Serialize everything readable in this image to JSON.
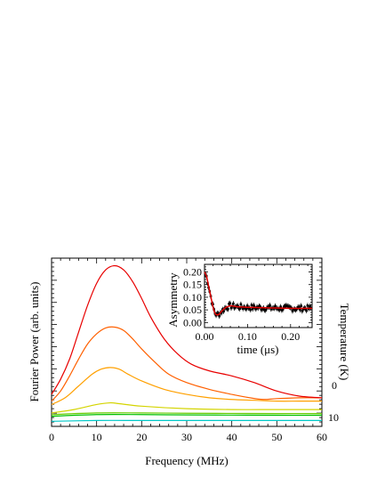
{
  "chart_data": [
    {
      "type": "line",
      "xlabel": "Frequency (MHz)",
      "ylabel": "Fourier Power (arb. units)",
      "y2label": "Temperature (K)",
      "xlim": [
        0,
        60
      ],
      "xticks": [
        "0",
        "10",
        "20",
        "30",
        "40",
        "50",
        "60"
      ],
      "colorbar_ticks": [
        "0",
        "10"
      ],
      "series": [
        {
          "color": "#00c8c8",
          "x": [
            0,
            10,
            20,
            30,
            40,
            50,
            60
          ],
          "values": [
            0.03,
            0.035,
            0.035,
            0.035,
            0.035,
            0.035,
            0.035
          ]
        },
        {
          "color": "#00c000",
          "x": [
            0,
            10,
            20,
            30,
            40,
            50,
            60
          ],
          "values": [
            0.06,
            0.07,
            0.07,
            0.068,
            0.067,
            0.066,
            0.066
          ]
        },
        {
          "color": "#66cc00",
          "x": [
            0,
            10,
            20,
            30,
            40,
            50,
            60
          ],
          "values": [
            0.07,
            0.08,
            0.08,
            0.078,
            0.077,
            0.076,
            0.076
          ]
        },
        {
          "color": "#d4d400",
          "x": [
            0,
            5,
            10,
            13,
            15,
            20,
            30,
            40,
            50,
            60
          ],
          "values": [
            0.08,
            0.1,
            0.13,
            0.14,
            0.135,
            0.12,
            0.105,
            0.1,
            0.1,
            0.1
          ]
        },
        {
          "color": "#ffa000",
          "x": [
            0,
            3,
            6,
            9,
            11,
            13,
            15,
            17,
            20,
            25,
            30,
            35,
            40,
            45,
            50,
            55,
            60
          ],
          "values": [
            0.13,
            0.17,
            0.24,
            0.31,
            0.34,
            0.35,
            0.34,
            0.31,
            0.27,
            0.22,
            0.19,
            0.17,
            0.16,
            0.155,
            0.15,
            0.15,
            0.15
          ]
        },
        {
          "color": "#ff6000",
          "x": [
            0,
            2,
            4,
            6,
            8,
            10,
            12,
            14,
            16,
            18,
            20,
            23,
            26,
            30,
            35,
            40,
            44,
            47,
            50,
            55,
            60
          ],
          "values": [
            0.15,
            0.21,
            0.3,
            0.4,
            0.49,
            0.55,
            0.585,
            0.59,
            0.57,
            0.52,
            0.46,
            0.38,
            0.31,
            0.26,
            0.22,
            0.19,
            0.17,
            0.16,
            0.165,
            0.17,
            0.17
          ]
        },
        {
          "color": "#e80000",
          "x": [
            0,
            2,
            4,
            6,
            8,
            10,
            12,
            14,
            16,
            18,
            20,
            22,
            25,
            28,
            31,
            35,
            40,
            45,
            50,
            55,
            60
          ],
          "values": [
            0.19,
            0.28,
            0.4,
            0.56,
            0.72,
            0.85,
            0.93,
            0.955,
            0.93,
            0.86,
            0.76,
            0.65,
            0.52,
            0.43,
            0.37,
            0.33,
            0.3,
            0.26,
            0.21,
            0.18,
            0.17
          ]
        }
      ]
    },
    {
      "type": "scatter",
      "xlabel": "time (μs)",
      "ylabel": "Asymmetry",
      "xlim": [
        0,
        0.25
      ],
      "ylim": [
        -0.02,
        0.23
      ],
      "xticks": [
        "0.00",
        "0.10",
        "0.20"
      ],
      "yticks": [
        "0.00",
        "0.05",
        "0.10",
        "0.15",
        "0.20"
      ],
      "fit": {
        "color": "#e00000",
        "x": [
          0,
          0.005,
          0.01,
          0.015,
          0.02,
          0.025,
          0.03,
          0.035,
          0.04,
          0.05,
          0.06,
          0.07,
          0.08,
          0.1,
          0.15,
          0.2,
          0.25
        ],
        "y": [
          0.2,
          0.18,
          0.14,
          0.1,
          0.06,
          0.035,
          0.03,
          0.035,
          0.045,
          0.06,
          0.066,
          0.064,
          0.062,
          0.06,
          0.058,
          0.056,
          0.056
        ]
      },
      "points_color": "#000000"
    }
  ]
}
